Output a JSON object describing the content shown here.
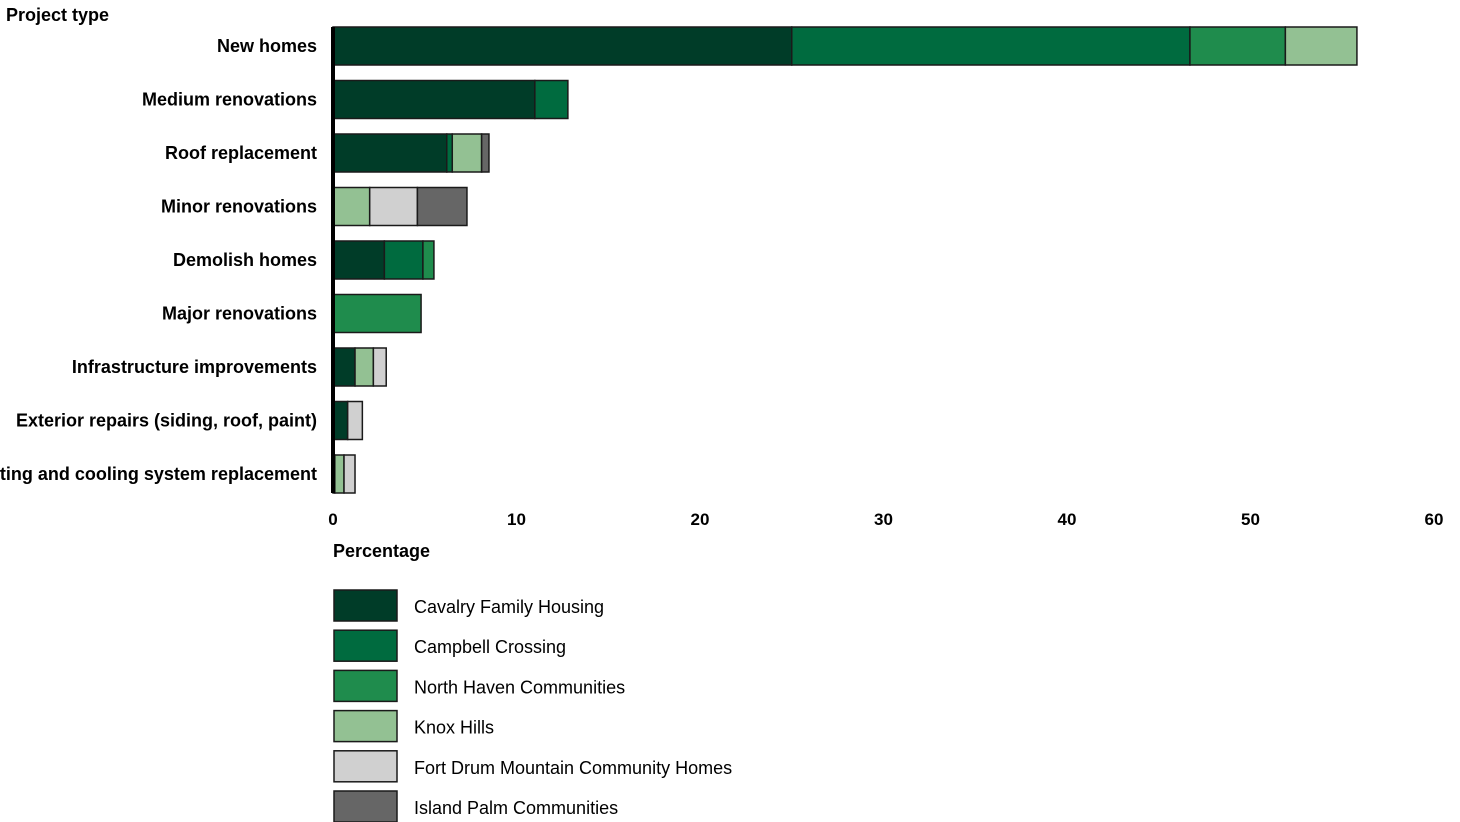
{
  "chart_data": {
    "type": "bar",
    "orientation": "horizontal",
    "stacked": true,
    "y_axis_title": "Project type",
    "xlabel": "Percentage",
    "xlim": [
      0,
      60
    ],
    "x_ticks": [
      0,
      10,
      20,
      30,
      40,
      50,
      60
    ],
    "grid": false,
    "legend_position": "bottom-left",
    "categories": [
      "New homes",
      "Medium renovations",
      "Roof replacement",
      "Minor renovations",
      "Demolish homes",
      "Major renovations",
      "Infrastructure improvements",
      "Exterior repairs (siding, roof, paint)",
      "Heating and cooling system replacement"
    ],
    "series": [
      {
        "name": "Cavalry Family Housing",
        "color": "#003c28",
        "values": [
          25.0,
          11.0,
          6.2,
          0,
          2.8,
          0,
          1.2,
          0.8,
          0.1
        ]
      },
      {
        "name": "Campbell Crossing",
        "color": "#006b3f",
        "values": [
          21.7,
          1.8,
          0.3,
          0,
          2.1,
          0,
          0,
          0,
          0
        ]
      },
      {
        "name": "North Haven Communities",
        "color": "#1f8c4d",
        "values": [
          5.2,
          0,
          0,
          0,
          0.6,
          4.8,
          0,
          0,
          0
        ]
      },
      {
        "name": "Knox Hills",
        "color": "#93c193",
        "values": [
          3.9,
          0,
          1.6,
          2.0,
          0,
          0,
          1.0,
          0,
          0.5
        ]
      },
      {
        "name": "Fort Drum Mountain Community Homes",
        "color": "#d0d0d0",
        "values": [
          0,
          0,
          0,
          2.6,
          0,
          0,
          0.7,
          0.8,
          0.6
        ]
      },
      {
        "name": "Island Palm Communities",
        "color": "#666666",
        "values": [
          0,
          0,
          0.4,
          2.7,
          0,
          0,
          0,
          0,
          0
        ]
      }
    ]
  }
}
